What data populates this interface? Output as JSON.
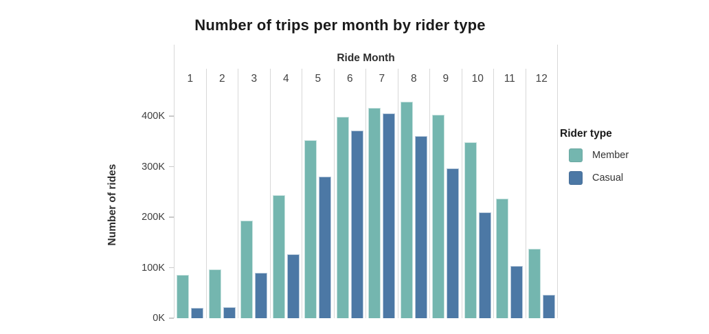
{
  "title": "Number of trips per month by rider type",
  "chart_data": {
    "type": "bar",
    "title": "Number of trips per month by rider type",
    "x_axis_label": "Ride Month",
    "y_axis_label": "Number of rides",
    "categories": [
      "1",
      "2",
      "3",
      "4",
      "5",
      "6",
      "7",
      "8",
      "9",
      "10",
      "11",
      "12"
    ],
    "series": [
      {
        "name": "Member",
        "color": "#74B6AF",
        "values": [
          86000,
          96000,
          193000,
          244000,
          353000,
          399000,
          417000,
          428000,
          403000,
          349000,
          237000,
          138000
        ]
      },
      {
        "name": "Casual",
        "color": "#4C78A5",
        "values": [
          21000,
          22000,
          90000,
          126000,
          281000,
          371000,
          406000,
          360000,
          297000,
          210000,
          103000,
          46000
        ]
      }
    ],
    "y_ticks": [
      {
        "label": "0K",
        "value": 0
      },
      {
        "label": "100K",
        "value": 100000
      },
      {
        "label": "200K",
        "value": 200000
      },
      {
        "label": "300K",
        "value": 300000
      },
      {
        "label": "400K",
        "value": 400000
      }
    ],
    "ylim": [
      0,
      440000
    ],
    "grid": "vertical column separators only, no horizontal gridlines",
    "legend": {
      "title": "Rider type",
      "position": "right"
    }
  }
}
